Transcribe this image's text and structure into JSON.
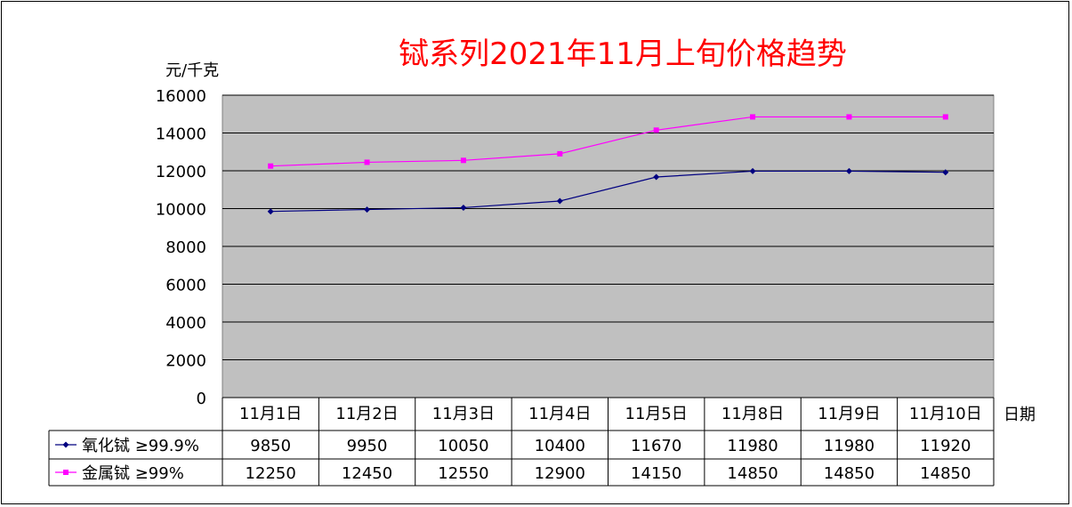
{
  "chart_data": {
    "type": "line",
    "title": "铽系列2021年11月上旬价格趋势",
    "ylabel": "元/千克",
    "xlabel": "日期",
    "categories": [
      "11月1日",
      "11月2日",
      "11月3日",
      "11月4日",
      "11月5日",
      "11月8日",
      "11月9日",
      "11月10日"
    ],
    "ylim": [
      0,
      16000
    ],
    "yticks": [
      "16000",
      "14000",
      "12000",
      "10000",
      "8000",
      "6000",
      "4000",
      "2000",
      "0"
    ],
    "grid": true,
    "series": [
      {
        "name": "氧化铽 ≥99.9%",
        "color": "#000080",
        "marker": "diamond",
        "values": [
          9850,
          9950,
          10050,
          10400,
          11670,
          11980,
          11980,
          11920
        ],
        "labels": [
          "9850",
          "9950",
          "10050",
          "10400",
          "11670",
          "11980",
          "11980",
          "11920"
        ]
      },
      {
        "name": "金属铽 ≥99%",
        "color": "#FF00FF",
        "marker": "square",
        "values": [
          12250,
          12450,
          12550,
          12900,
          14150,
          14850,
          14850,
          14850
        ],
        "labels": [
          "12250",
          "12450",
          "12550",
          "12900",
          "14150",
          "14850",
          "14850",
          "14850"
        ]
      }
    ],
    "colors": {
      "plot_bg": "#C0C0C0",
      "title": "#FF0000"
    }
  }
}
